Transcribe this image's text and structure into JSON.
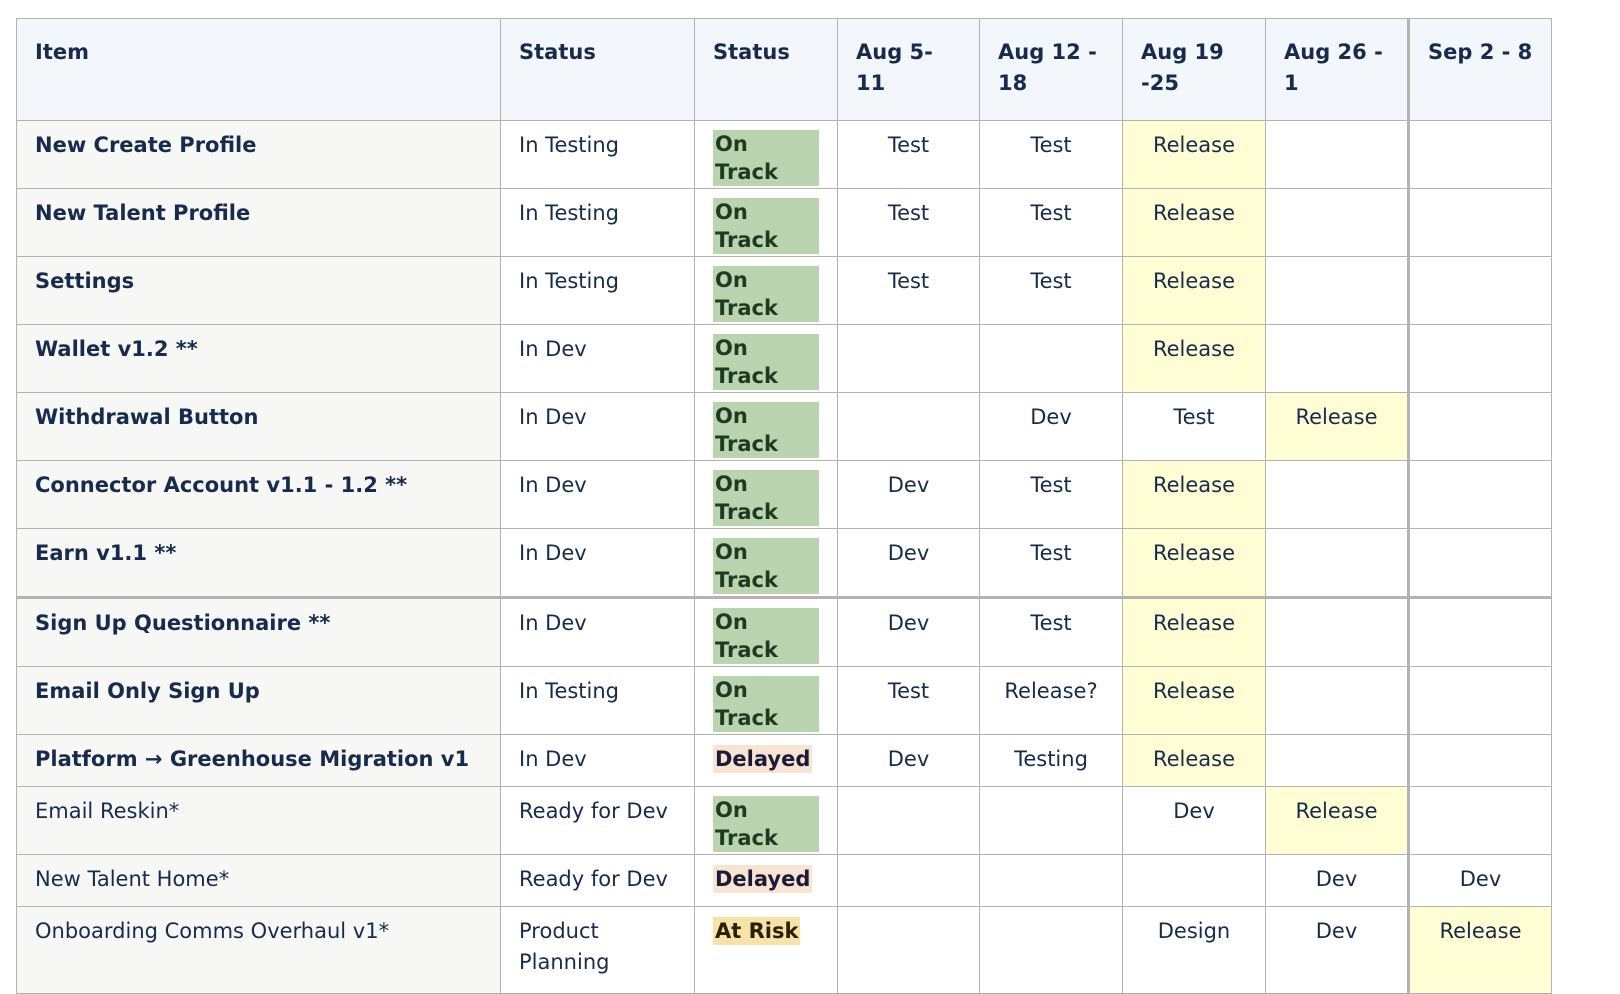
{
  "table": {
    "headers": [
      "Item",
      "Status",
      "Status",
      "Aug 5-11",
      "Aug 12 - 18",
      "Aug 19 -25",
      "Aug 26 - 1",
      "Sep 2 - 8"
    ],
    "rows": [
      {
        "item": "New Create Profile",
        "status": "In Testing",
        "health": "On Track",
        "w1": "Test",
        "w2": "Test",
        "w3": "Release",
        "w4": "",
        "w5": ""
      },
      {
        "item": "New Talent Profile",
        "status": "In Testing",
        "health": "On Track",
        "w1": "Test",
        "w2": "Test",
        "w3": "Release",
        "w4": "",
        "w5": ""
      },
      {
        "item": "Settings",
        "status": "In Testing",
        "health": "On Track",
        "w1": "Test",
        "w2": "Test",
        "w3": "Release",
        "w4": "",
        "w5": ""
      },
      {
        "item": "Wallet v1.2 **",
        "status": "In Dev",
        "health": "On Track",
        "w1": "",
        "w2": "",
        "w3": "Release",
        "w4": "",
        "w5": ""
      },
      {
        "item": "Withdrawal Button",
        "status": "In Dev",
        "health": "On Track",
        "w1": "",
        "w2": "Dev",
        "w3": "Test",
        "w4": "Release",
        "w5": ""
      },
      {
        "item": "Connector Account v1.1 - 1.2 **",
        "status": "In Dev",
        "health": "On Track",
        "w1": "Dev",
        "w2": "Test",
        "w3": "Release",
        "w4": "",
        "w5": ""
      },
      {
        "item": "Earn v1.1 **",
        "status": "In Dev",
        "health": "On Track",
        "w1": "Dev",
        "w2": "Test",
        "w3": "Release",
        "w4": "",
        "w5": ""
      },
      {
        "item": "Sign Up Questionnaire **",
        "status": "In Dev",
        "health": "On Track",
        "w1": "Dev",
        "w2": "Test",
        "w3": "Release",
        "w4": "",
        "w5": ""
      },
      {
        "item": "Email Only Sign Up",
        "status": "In Testing",
        "health": "On Track",
        "w1": "Test",
        "w2": "Release?",
        "w3": "Release",
        "w4": "",
        "w5": ""
      },
      {
        "item": "Platform → Greenhouse Migration v1",
        "status": "In Dev",
        "health": "Delayed",
        "w1": "Dev",
        "w2": "Testing",
        "w3": "Release",
        "w4": "",
        "w5": ""
      },
      {
        "item": "Email Reskin*",
        "status": "Ready for Dev",
        "health": "On Track",
        "w1": "",
        "w2": "",
        "w3": "Dev",
        "w4": "Release",
        "w5": ""
      },
      {
        "item": "New Talent Home*",
        "status": "Ready for Dev",
        "health": "Delayed",
        "w1": "",
        "w2": "",
        "w3": "",
        "w4": "Dev",
        "w5": "Dev"
      },
      {
        "item": "Onboarding Comms Overhaul v1*",
        "status": "Product Planning",
        "health": "At Risk",
        "w1": "",
        "w2": "",
        "w3": "Design",
        "w4": "Dev",
        "w5": "Release"
      }
    ]
  },
  "colors": {
    "on_track": "#b9d4ae",
    "delayed": "#f7e4d2",
    "at_risk": "#f7e2a8",
    "release_highlight": "#fefdd4",
    "header_bg": "#f3f6fb",
    "item_bg": "#f7f7f5"
  }
}
